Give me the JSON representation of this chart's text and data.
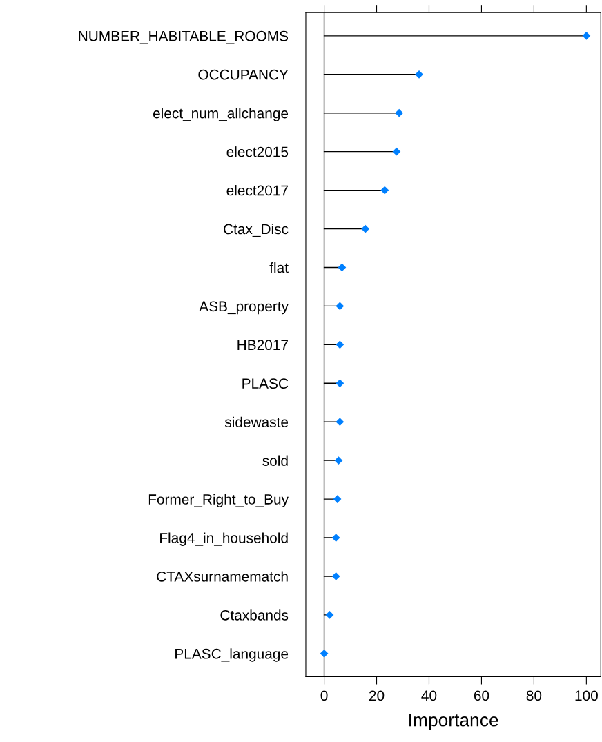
{
  "chart_data": {
    "type": "lollipop",
    "orientation": "horizontal",
    "xlabel": "Importance",
    "categories": [
      "NUMBER_HABITABLE_ROOMS",
      "OCCUPANCY",
      "elect_num_allchange",
      "elect2015",
      "elect2017",
      "Ctax_Disc",
      "flat",
      "ASB_property",
      "HB2017",
      "PLASC",
      "sidewaste",
      "sold",
      "Former_Right_to_Buy",
      "Flag4_in_household",
      "CTAXsurnamematch",
      "Ctaxbands",
      "PLASC_language"
    ],
    "values": [
      100,
      36.2,
      28.6,
      27.6,
      23.1,
      15.7,
      6.8,
      6.0,
      6.0,
      6.0,
      6.0,
      5.5,
      5.0,
      4.5,
      4.5,
      2.1,
      0
    ],
    "color": "#0080ff",
    "marker": "diamond",
    "xlim": [
      -7,
      105.5
    ],
    "xticks": [
      0,
      20,
      40,
      60,
      80,
      100
    ],
    "ref_lines": [
      {
        "axis": "x",
        "value": 0,
        "color": "#000000"
      }
    ],
    "grid": false
  }
}
